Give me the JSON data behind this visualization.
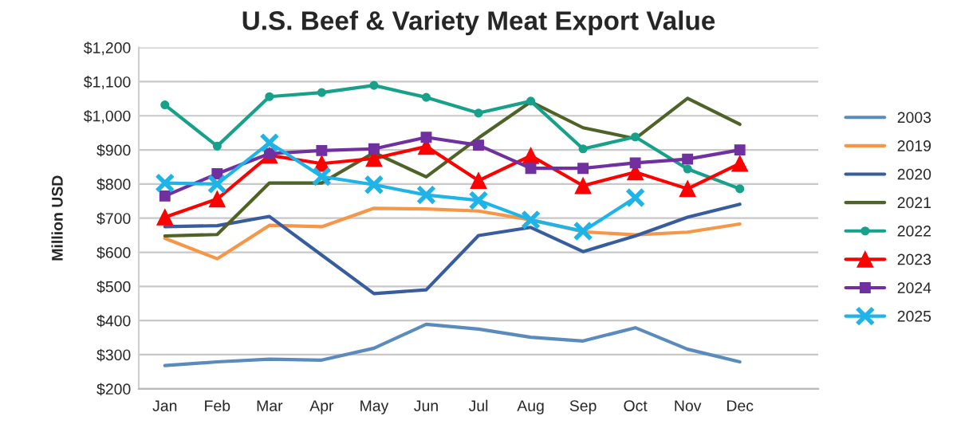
{
  "chart_data": {
    "type": "line",
    "title": "U.S. Beef & Variety Meat Export Value",
    "ylabel": "Million USD",
    "categories": [
      "Jan",
      "Feb",
      "Mar",
      "Apr",
      "May",
      "Jun",
      "Jul",
      "Aug",
      "Sep",
      "Oct",
      "Nov",
      "Dec",
      null
    ],
    "series": [
      {
        "name": "2003",
        "color": "#5b8bbd",
        "marker": "none",
        "values": [
          268,
          279,
          287,
          284,
          319,
          389,
          375,
          351,
          340,
          379,
          316,
          279,
          null
        ]
      },
      {
        "name": "2019",
        "color": "#f79646",
        "marker": "none",
        "values": [
          641,
          581,
          679,
          675,
          729,
          727,
          721,
          695,
          660,
          651,
          659,
          683,
          null
        ]
      },
      {
        "name": "2020",
        "color": "#385d9e",
        "marker": "none",
        "values": [
          675,
          678,
          705,
          592,
          479,
          490,
          649,
          673,
          602,
          648,
          703,
          741,
          null
        ]
      },
      {
        "name": "2021",
        "color": "#4f6228",
        "marker": "none",
        "values": [
          648,
          652,
          803,
          803,
          892,
          821,
          935,
          1041,
          965,
          933,
          1051,
          975,
          null
        ]
      },
      {
        "name": "2022",
        "color": "#17a08a",
        "marker": "circle",
        "values": [
          1032,
          911,
          1056,
          1068,
          1089,
          1054,
          1008,
          1043,
          903,
          938,
          844,
          786,
          null
        ]
      },
      {
        "name": "2023",
        "color": "#ff0000",
        "marker": "triangle",
        "values": [
          703,
          756,
          884,
          860,
          875,
          910,
          810,
          883,
          795,
          835,
          786,
          860,
          null
        ]
      },
      {
        "name": "2024",
        "color": "#7030a0",
        "marker": "square",
        "values": [
          765,
          830,
          889,
          898,
          903,
          937,
          914,
          846,
          846,
          862,
          873,
          900,
          null
        ]
      },
      {
        "name": "2025",
        "color": "#1fb4e8",
        "marker": "cross",
        "values": [
          803,
          800,
          921,
          822,
          798,
          768,
          752,
          695,
          662,
          760,
          null,
          null,
          null
        ]
      }
    ],
    "ylim": [
      200,
      1200
    ],
    "yticks": [
      {
        "value": 200,
        "label": "$200"
      },
      {
        "value": 300,
        "label": "$300"
      },
      {
        "value": 400,
        "label": "$400"
      },
      {
        "value": 500,
        "label": "$500"
      },
      {
        "value": 600,
        "label": "$600"
      },
      {
        "value": 700,
        "label": "$700"
      },
      {
        "value": 800,
        "label": "$800"
      },
      {
        "value": 900,
        "label": "$900"
      },
      {
        "value": 1000,
        "label": "$1,000"
      },
      {
        "value": 1100,
        "label": "$1,100"
      },
      {
        "value": 1200,
        "label": "$1,200"
      }
    ],
    "grid": "y",
    "legend": "right",
    "line_style": "solid"
  }
}
